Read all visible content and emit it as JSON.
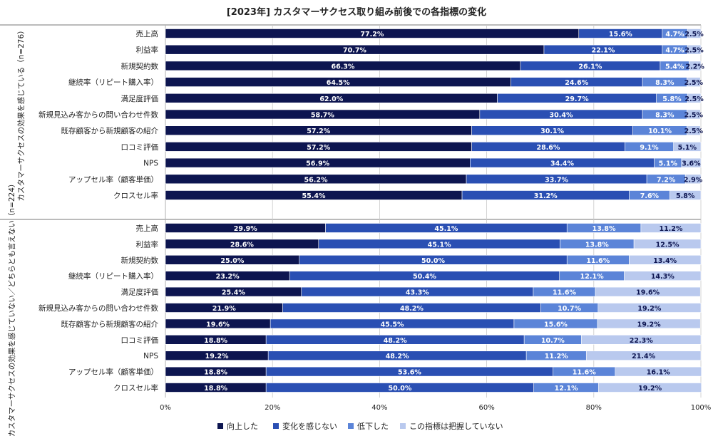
{
  "chart_data": {
    "type": "bar",
    "title": "[2023年] カスタマーサクセス取り組み前後での各指標の変化",
    "stacked": true,
    "orientation": "horizontal",
    "xlim": [
      0,
      100
    ],
    "x_ticks": [
      "0%",
      "20%",
      "40%",
      "60%",
      "80%",
      "100%"
    ],
    "legend_position": "bottom",
    "legend": [
      {
        "name": "向上した",
        "color": "#0d1550"
      },
      {
        "name": "変化を感じない",
        "color": "#2a4fb3"
      },
      {
        "name": "低下した",
        "color": "#5b84d8"
      },
      {
        "name": "この指標は把握していない",
        "color": "#b9c9ee"
      }
    ],
    "groups": [
      {
        "label": "カスタマーサクセスの効果を感じている（n=276）",
        "categories": [
          "売上高",
          "利益率",
          "新規契約数",
          "継続率（リピート購入率）",
          "満足度評価",
          "新規見込み客からの問い合わせ件数",
          "既存顧客から新規顧客の紹介",
          "口コミ評価",
          "NPS",
          "アップセル率（顧客単価）",
          "クロスセル率"
        ],
        "series": [
          {
            "name": "向上した",
            "values": [
              77.2,
              70.7,
              66.3,
              64.5,
              62.0,
              58.7,
              57.2,
              57.2,
              56.9,
              56.2,
              55.4
            ]
          },
          {
            "name": "変化を感じない",
            "values": [
              15.6,
              22.1,
              26.1,
              24.6,
              29.7,
              30.4,
              30.1,
              28.6,
              34.4,
              33.7,
              31.2
            ]
          },
          {
            "name": "低下した",
            "values": [
              4.7,
              4.7,
              5.4,
              8.3,
              5.8,
              8.3,
              10.1,
              9.1,
              5.1,
              7.2,
              7.6
            ]
          },
          {
            "name": "この指標は把握していない",
            "values": [
              2.5,
              2.5,
              2.2,
              2.5,
              2.5,
              2.5,
              2.5,
              5.1,
              3.6,
              2.9,
              5.8
            ]
          }
        ]
      },
      {
        "label": "カスタマーサクセスの効果を感じていない／どちらとも言えない（n=224）",
        "categories": [
          "売上高",
          "利益率",
          "新規契約数",
          "継続率（リピート購入率）",
          "満足度評価",
          "新規見込み客からの問い合わせ件数",
          "既存顧客から新規顧客の紹介",
          "口コミ評価",
          "NPS",
          "アップセル率（顧客単価）",
          "クロスセル率"
        ],
        "series": [
          {
            "name": "向上した",
            "values": [
              29.9,
              28.6,
              25.0,
              23.2,
              25.4,
              21.9,
              19.6,
              18.8,
              19.2,
              18.8,
              18.8
            ]
          },
          {
            "name": "変化を感じない",
            "values": [
              45.1,
              45.1,
              50.0,
              50.4,
              43.3,
              48.2,
              45.5,
              48.2,
              48.2,
              53.6,
              50.0
            ]
          },
          {
            "name": "低下した",
            "values": [
              13.8,
              13.8,
              11.6,
              12.1,
              11.6,
              10.7,
              15.6,
              10.7,
              11.2,
              11.6,
              12.1
            ]
          },
          {
            "name": "この指標は把握していない",
            "values": [
              11.2,
              12.5,
              13.4,
              14.3,
              19.6,
              19.2,
              19.2,
              22.3,
              21.4,
              16.1,
              19.2
            ]
          }
        ]
      }
    ]
  }
}
